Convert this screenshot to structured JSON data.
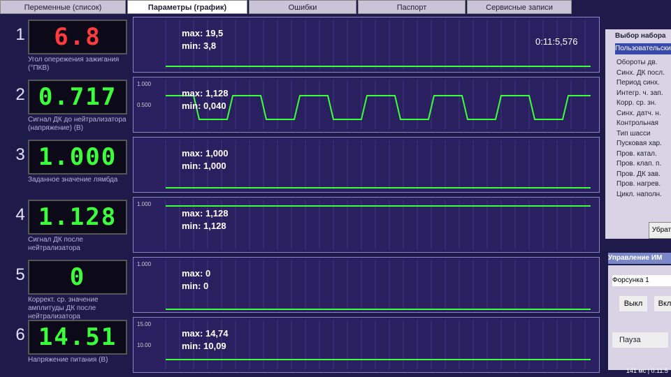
{
  "tabs": [
    "Переменные (список)",
    "Параметры (график)",
    "Ошибки",
    "Паспорт",
    "Сервисные записи"
  ],
  "rows": [
    {
      "num": "1",
      "value": "6.8",
      "value_color": "#ff3b3b",
      "label": "Угол опережения зажигания (°ПКВ)",
      "max": "max: 19,5",
      "min": "min: 3,8",
      "time": "0:11:5,576"
    },
    {
      "num": "2",
      "value": "0.717",
      "value_color": "#3cff3c",
      "label": "Сигнал ДК до нейтрализатора (напряжение) (В)",
      "max": "max: 1,128",
      "min": "min: 0,040",
      "axis": [
        "1.000",
        "0.500"
      ]
    },
    {
      "num": "3",
      "value": "1.000",
      "value_color": "#3cff3c",
      "label": "Заданное значение лямбда",
      "max": "max: 1,000",
      "min": "min: 1,000"
    },
    {
      "num": "4",
      "value": "1.128",
      "value_color": "#3cff3c",
      "label": "Сигнал ДК после нейтрализатора",
      "max": "max: 1,128",
      "min": "min: 1,128",
      "axis": [
        "1.000"
      ]
    },
    {
      "num": "5",
      "value": "0",
      "value_color": "#3cff3c",
      "label": "Коррект. ср. значение амплитуды ДК после нейтрализатора",
      "max": "max: 0",
      "min": "min: 0",
      "axis": [
        "1.000"
      ]
    },
    {
      "num": "6",
      "value": "14.51",
      "value_color": "#3cff3c",
      "label": "Напряжение питания (В)",
      "max": "max: 14,74",
      "min": "min: 10,09",
      "axis": [
        "15.00",
        "10.00"
      ]
    }
  ],
  "side": {
    "title": "Выбор набора",
    "preset": "Пользовательский",
    "items": [
      "Обороты дв.",
      "Синх. ДК посл.",
      "Период синх.",
      "Интегр. ч. зап.",
      "Корр. ср. зн.",
      "Синх. датч. н.",
      "Контрольная",
      "Тип шасси",
      "Пусковая хар.",
      "Пров. катал.",
      "Пров. клап. п.",
      "Пров. ДК зав.",
      "Пров. нагрев.",
      "Цикл. наполн."
    ],
    "remove": "Убрать",
    "control_title": "Управление ИМ",
    "injector": "Форсунка 1",
    "off": "Выкл",
    "on": "Вкл",
    "pause": "Пауза",
    "status": "141 мс | 0:11:5"
  }
}
